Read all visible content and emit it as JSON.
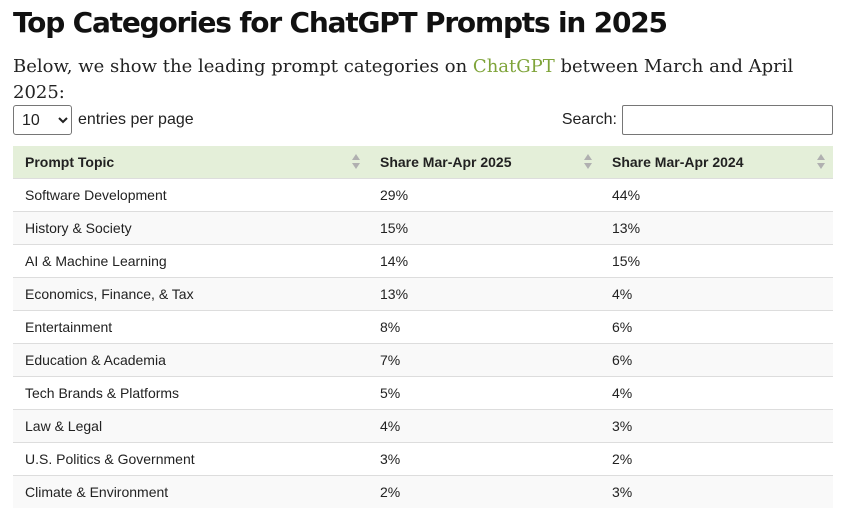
{
  "page": {
    "title": "Top Categories for ChatGPT Prompts in 2025",
    "intro_before": "Below, we show the leading prompt categories on ",
    "intro_link": "ChatGPT",
    "intro_after": " between March and April 2025:"
  },
  "controls": {
    "length_selected": "10",
    "length_label": "entries per page",
    "search_label": "Search:",
    "search_value": ""
  },
  "table": {
    "headers": [
      "Prompt Topic",
      "Share Mar-Apr 2025",
      "Share Mar-Apr 2024"
    ],
    "rows": [
      [
        "Software Development",
        "29%",
        "44%"
      ],
      [
        "History & Society",
        "15%",
        "13%"
      ],
      [
        "AI & Machine Learning",
        "14%",
        "15%"
      ],
      [
        "Economics, Finance, & Tax",
        "13%",
        "4%"
      ],
      [
        "Entertainment",
        "8%",
        "6%"
      ],
      [
        "Education & Academia",
        "7%",
        "6%"
      ],
      [
        "Tech Brands & Platforms",
        "5%",
        "4%"
      ],
      [
        "Law & Legal",
        "4%",
        "3%"
      ],
      [
        "U.S. Politics & Government",
        "3%",
        "2%"
      ],
      [
        "Climate & Environment",
        "2%",
        "3%"
      ]
    ]
  },
  "colors": {
    "link": "#7fa43a",
    "header_bg": "#e4efd9"
  },
  "icons": {
    "sort": "sort-arrows-icon"
  }
}
